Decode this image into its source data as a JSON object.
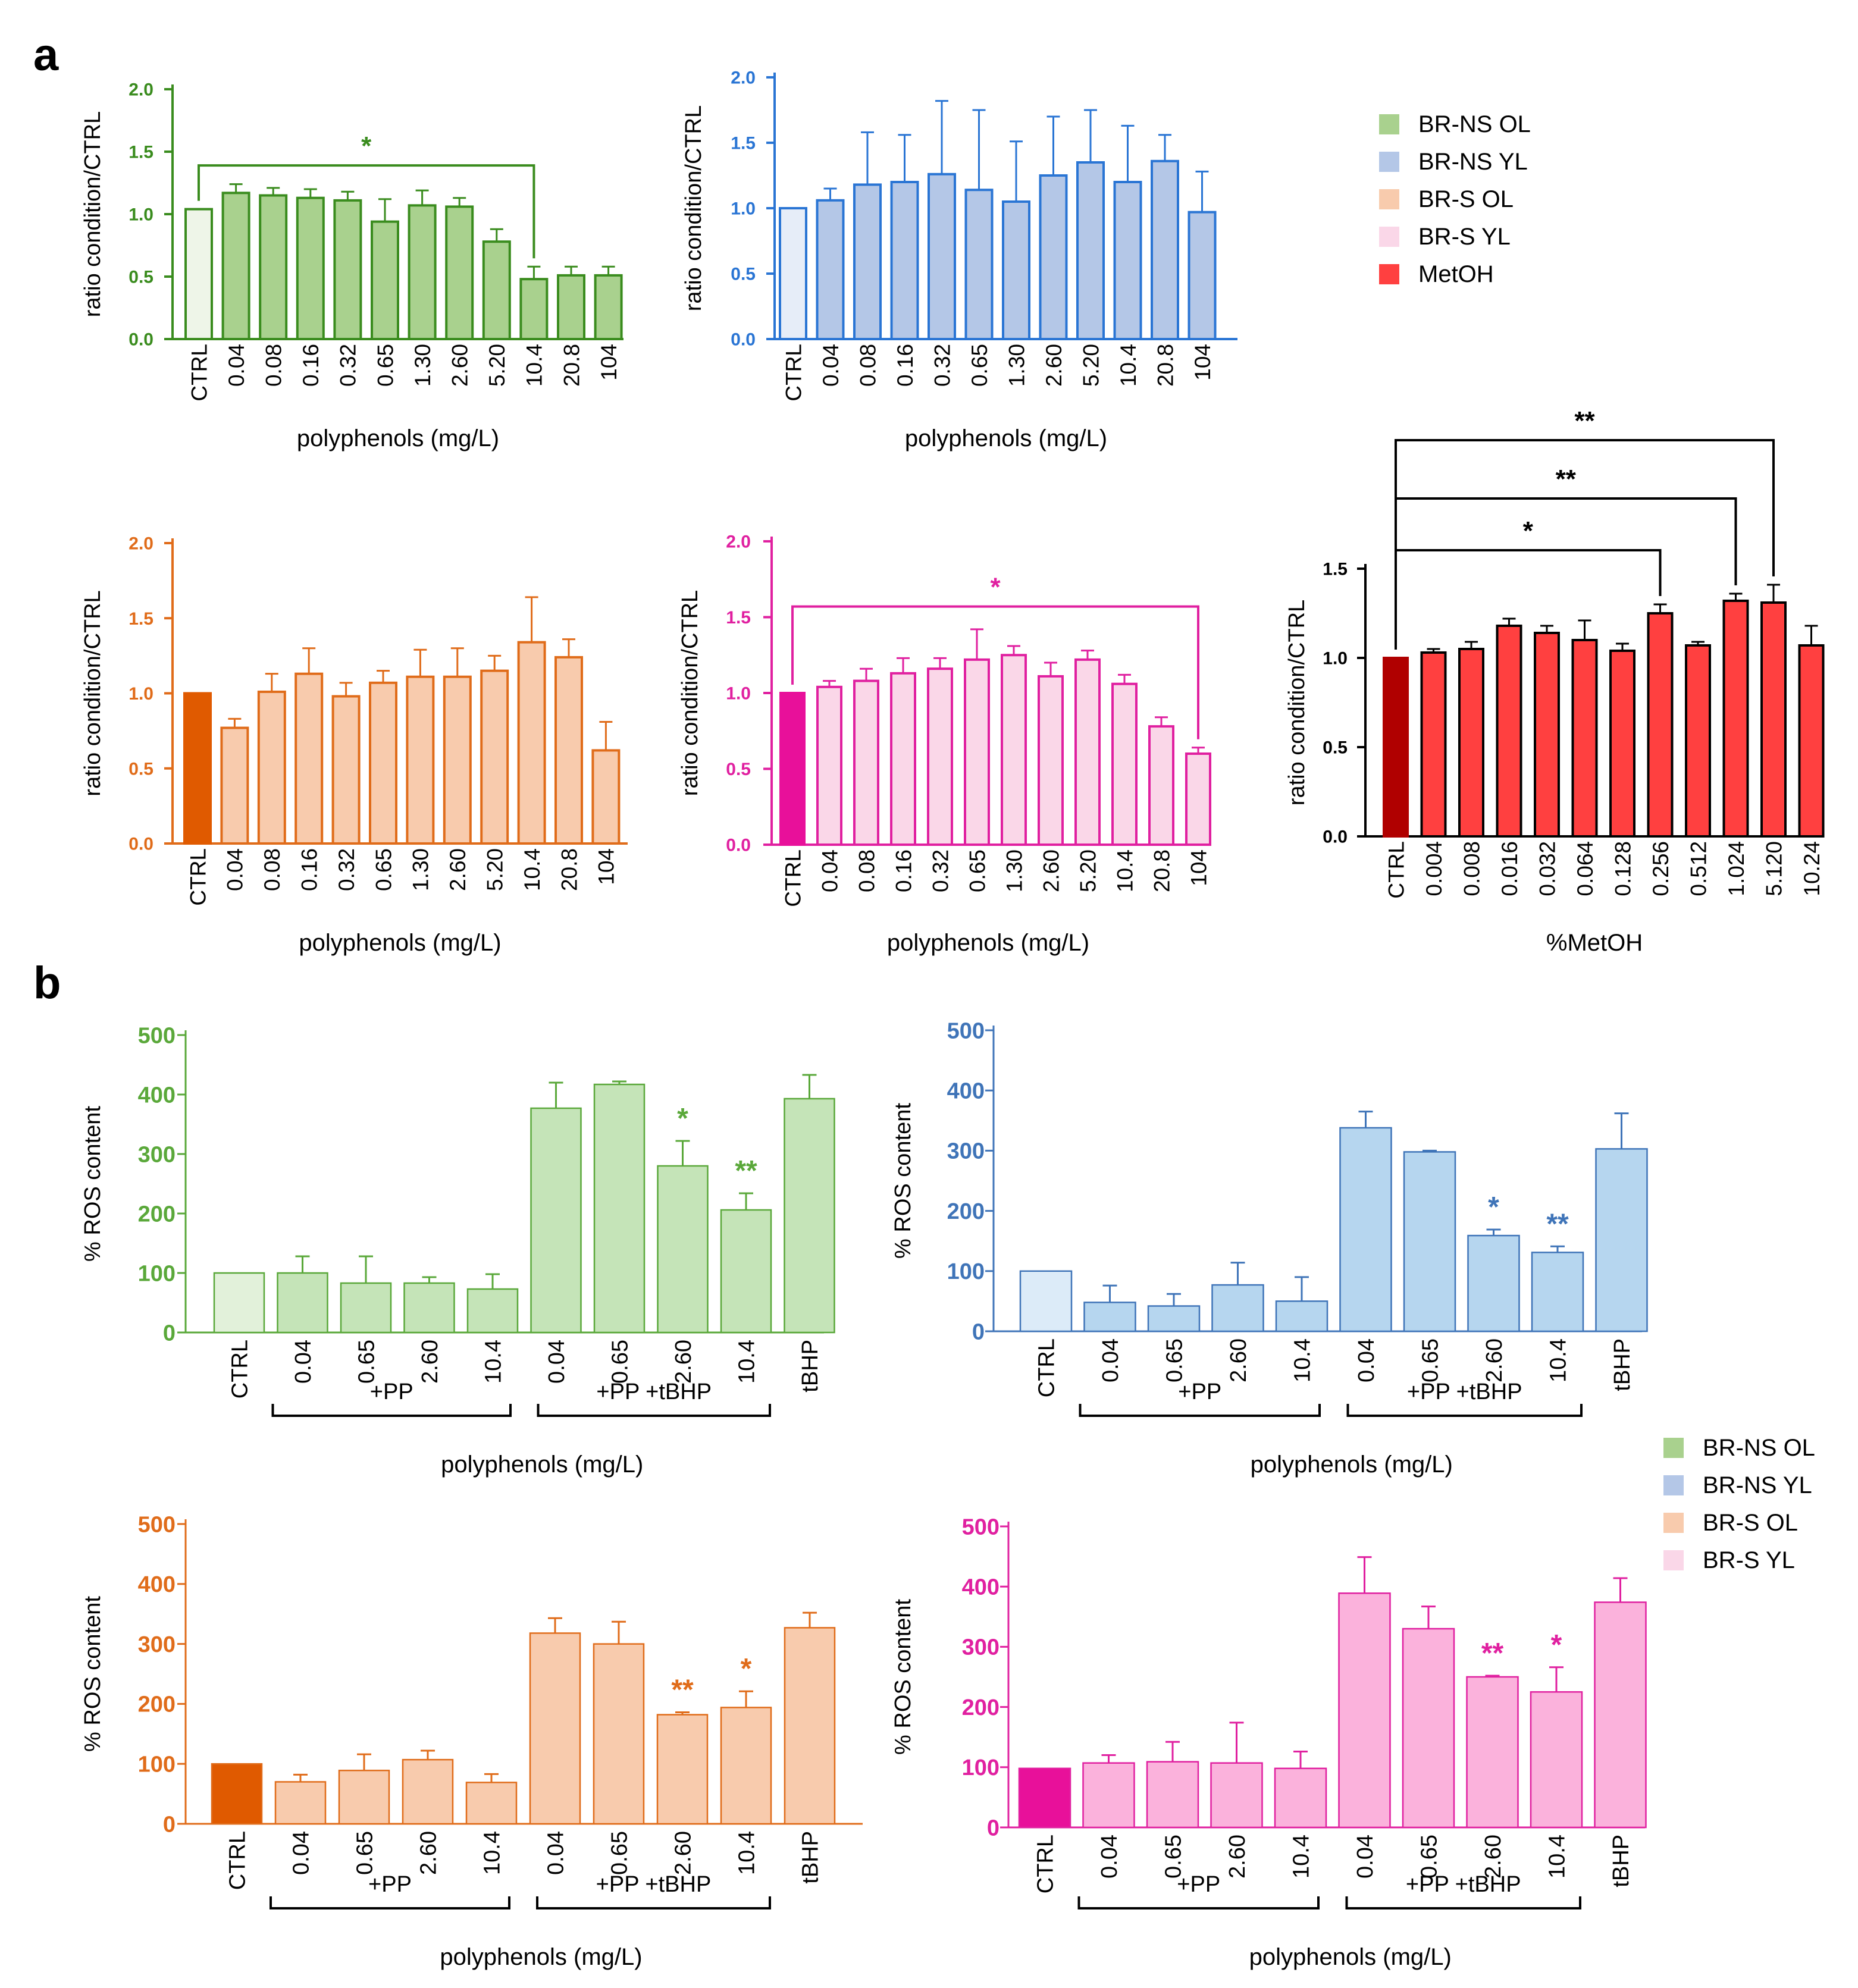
{
  "panel_labels": {
    "a": "a",
    "b": "b"
  },
  "legend_a": {
    "entries": [
      {
        "label": "BR-NS OL",
        "color": "#a9d18e"
      },
      {
        "label": "BR-NS YL",
        "color": "#b4c7e7"
      },
      {
        "label": "BR-S OL",
        "color": "#f8cbad"
      },
      {
        "label": "BR-S YL",
        "color": "#fad7e8"
      },
      {
        "label": "MetOH",
        "color": "#ff4040"
      }
    ]
  },
  "legend_b": {
    "entries": [
      {
        "label": "BR-NS OL",
        "color": "#a9d18e"
      },
      {
        "label": "BR-NS YL",
        "color": "#b4c7e7"
      },
      {
        "label": "BR-S OL",
        "color": "#f8cbad"
      },
      {
        "label": "BR-S YL",
        "color": "#fad7e8"
      }
    ]
  },
  "groups_b": {
    "pp": "+PP",
    "pp_tbhp": "+PP +tBHP"
  },
  "chart_data": [
    {
      "id": "a1",
      "type": "bar",
      "panel": "a",
      "series": "BR-NS OL",
      "xlabel": "polyphenols (mg/L)",
      "ylabel": "ratio condition/CTRL",
      "ylim": [
        0,
        2.0
      ],
      "yticks": [
        "0.0",
        "0.5",
        "1.0",
        "1.5",
        "2.0"
      ],
      "categories": [
        "CTRL",
        "0.04",
        "0.08",
        "0.16",
        "0.32",
        "0.65",
        "1.30",
        "2.60",
        "5.20",
        "10.4",
        "20.8",
        "104"
      ],
      "values": [
        1.04,
        1.17,
        1.15,
        1.13,
        1.11,
        0.94,
        1.07,
        1.06,
        0.78,
        0.48,
        0.51,
        0.51
      ],
      "errors": [
        0,
        0.07,
        0.06,
        0.07,
        0.07,
        0.18,
        0.12,
        0.07,
        0.1,
        0.1,
        0.07,
        0.07
      ],
      "colors": {
        "axis": "#3a8c1e",
        "fill": "#a9d18e",
        "ctrl_fill": "#eef5e8",
        "edge": "#3a8c1e"
      },
      "brackets": [
        {
          "from": 0,
          "to": 9,
          "label": "*"
        }
      ]
    },
    {
      "id": "a2",
      "type": "bar",
      "panel": "a",
      "series": "BR-NS YL",
      "xlabel": "polyphenols (mg/L)",
      "ylabel": "ratio condition/CTRL",
      "ylim": [
        0,
        2.0
      ],
      "yticks": [
        "0.0",
        "0.5",
        "1.0",
        "1.5",
        "2.0"
      ],
      "categories": [
        "CTRL",
        "0.04",
        "0.08",
        "0.16",
        "0.32",
        "0.65",
        "1.30",
        "2.60",
        "5.20",
        "10.4",
        "20.8",
        "104"
      ],
      "values": [
        1.0,
        1.06,
        1.18,
        1.2,
        1.26,
        1.14,
        1.05,
        1.25,
        1.35,
        1.2,
        1.36,
        0.97
      ],
      "errors": [
        0,
        0.09,
        0.4,
        0.36,
        0.56,
        0.61,
        0.46,
        0.45,
        0.4,
        0.43,
        0.2,
        0.31
      ],
      "colors": {
        "axis": "#2a75d4",
        "fill": "#b4c7e7",
        "ctrl_fill": "#e6edf8",
        "edge": "#2a75d4"
      },
      "brackets": []
    },
    {
      "id": "a3",
      "type": "bar",
      "panel": "a",
      "series": "BR-S OL",
      "xlabel": "polyphenols (mg/L)",
      "ylabel": "ratio condition/CTRL",
      "ylim": [
        0,
        2.0
      ],
      "yticks": [
        "0.0",
        "0.5",
        "1.0",
        "1.5",
        "2.0"
      ],
      "categories": [
        "CTRL",
        "0.04",
        "0.08",
        "0.16",
        "0.32",
        "0.65",
        "1.30",
        "2.60",
        "5.20",
        "10.4",
        "20.8",
        "104"
      ],
      "values": [
        1.0,
        0.77,
        1.01,
        1.13,
        0.98,
        1.07,
        1.11,
        1.11,
        1.15,
        1.34,
        1.24,
        0.62
      ],
      "errors": [
        0,
        0.06,
        0.12,
        0.17,
        0.09,
        0.08,
        0.18,
        0.19,
        0.1,
        0.3,
        0.12,
        0.19
      ],
      "colors": {
        "axis": "#e06c1a",
        "fill": "#f8cbad",
        "ctrl_fill": "#e05a00",
        "edge": "#e06c1a"
      },
      "brackets": []
    },
    {
      "id": "a4",
      "type": "bar",
      "panel": "a",
      "series": "BR-S YL",
      "xlabel": "polyphenols (mg/L)",
      "ylabel": "ratio condition/CTRL",
      "ylim": [
        0,
        2.0
      ],
      "yticks": [
        "0.0",
        "0.5",
        "1.0",
        "1.5",
        "2.0"
      ],
      "categories": [
        "CTRL",
        "0.04",
        "0.08",
        "0.16",
        "0.32",
        "0.65",
        "1.30",
        "2.60",
        "5.20",
        "10.4",
        "20.8",
        "104"
      ],
      "values": [
        1.0,
        1.04,
        1.08,
        1.13,
        1.16,
        1.22,
        1.25,
        1.11,
        1.22,
        1.06,
        0.78,
        0.6
      ],
      "errors": [
        0,
        0.04,
        0.08,
        0.1,
        0.07,
        0.2,
        0.06,
        0.09,
        0.06,
        0.06,
        0.06,
        0.04
      ],
      "colors": {
        "axis": "#e020a0",
        "fill": "#fad7e8",
        "ctrl_fill": "#e8109a",
        "edge": "#e020a0"
      },
      "brackets": [
        {
          "from": 0,
          "to": 11,
          "label": "*"
        }
      ]
    },
    {
      "id": "a5",
      "type": "bar",
      "panel": "a",
      "series": "MetOH",
      "xlabel": "%MetOH",
      "ylabel": "ratio condition/CTRL",
      "ylim": [
        0,
        1.5
      ],
      "yticks": [
        "0.0",
        "0.5",
        "1.0",
        "1.5"
      ],
      "categories": [
        "CTRL",
        "0.004",
        "0.008",
        "0.016",
        "0.032",
        "0.064",
        "0.128",
        "0.256",
        "0.512",
        "1.024",
        "5.120",
        "10.24"
      ],
      "values": [
        1.0,
        1.03,
        1.05,
        1.18,
        1.14,
        1.1,
        1.04,
        1.25,
        1.07,
        1.32,
        1.31,
        1.07
      ],
      "errors": [
        0,
        0.02,
        0.04,
        0.04,
        0.04,
        0.11,
        0.04,
        0.05,
        0.02,
        0.04,
        0.1,
        0.11
      ],
      "colors": {
        "axis": "#000000",
        "fill": "#ff4040",
        "ctrl_fill": "#b00000",
        "edge": "#000000"
      },
      "brackets": [
        {
          "from": 0,
          "to": 7,
          "label": "*"
        },
        {
          "from": 0,
          "to": 9,
          "label": "**"
        },
        {
          "from": 0,
          "to": 10,
          "label": "**"
        }
      ]
    },
    {
      "id": "b1",
      "type": "bar",
      "panel": "b",
      "series": "BR-NS OL",
      "xlabel": "polyphenols (mg/L)",
      "ylabel": "% ROS content",
      "ylim": [
        0,
        500
      ],
      "yticks": [
        "0",
        "100",
        "200",
        "300",
        "400",
        "500"
      ],
      "categories": [
        "CTRL",
        "0.04",
        "0.65",
        "2.60",
        "10.4",
        "0.04",
        "0.65",
        "2.60",
        "10.4",
        "tBHP"
      ],
      "values": [
        100,
        100,
        83,
        83,
        73,
        377,
        417,
        280,
        206,
        393
      ],
      "errors": [
        0,
        28,
        45,
        10,
        25,
        43,
        5,
        42,
        28,
        40
      ],
      "sig": [
        null,
        null,
        null,
        null,
        null,
        null,
        null,
        "*",
        "**",
        null
      ],
      "colors": {
        "axis": "#5aa83a",
        "fill": "#c5e4b8",
        "ctrl_fill": "#e2f1da",
        "edge": "#5aa83a"
      }
    },
    {
      "id": "b2",
      "type": "bar",
      "panel": "b",
      "series": "BR-NS YL",
      "xlabel": "polyphenols (mg/L)",
      "ylabel": "% ROS content",
      "ylim": [
        0,
        500
      ],
      "yticks": [
        "0",
        "100",
        "200",
        "300",
        "400",
        "500"
      ],
      "categories": [
        "CTRL",
        "0.04",
        "0.65",
        "2.60",
        "10.4",
        "0.04",
        "0.65",
        "2.60",
        "10.4",
        "tBHP"
      ],
      "values": [
        100,
        48,
        42,
        77,
        50,
        338,
        298,
        159,
        131,
        303
      ],
      "errors": [
        0,
        28,
        20,
        37,
        40,
        27,
        2,
        10,
        10,
        59
      ],
      "sig": [
        null,
        null,
        null,
        null,
        null,
        null,
        null,
        "*",
        "**",
        null
      ],
      "colors": {
        "axis": "#3f74b8",
        "fill": "#b6d6ef",
        "ctrl_fill": "#dcebf8",
        "edge": "#3f74b8"
      }
    },
    {
      "id": "b3",
      "type": "bar",
      "panel": "b",
      "series": "BR-S OL",
      "xlabel": "polyphenols (mg/L)",
      "ylabel": "% ROS content",
      "ylim": [
        0,
        500
      ],
      "yticks": [
        "0",
        "100",
        "200",
        "300",
        "400",
        "500"
      ],
      "categories": [
        "CTRL",
        "0.04",
        "0.65",
        "2.60",
        "10.4",
        "0.04",
        "0.65",
        "2.60",
        "10.4",
        "tBHP"
      ],
      "values": [
        100,
        70,
        89,
        107,
        69,
        318,
        300,
        182,
        194,
        327
      ],
      "errors": [
        0,
        12,
        27,
        15,
        14,
        25,
        37,
        4,
        27,
        25
      ],
      "sig": [
        null,
        null,
        null,
        null,
        null,
        null,
        null,
        "**",
        "*",
        null
      ],
      "colors": {
        "axis": "#e06c1a",
        "fill": "#f8cbad",
        "ctrl_fill": "#e05a00",
        "edge": "#e06c1a"
      }
    },
    {
      "id": "b4",
      "type": "bar",
      "panel": "b",
      "series": "BR-S YL",
      "xlabel": "polyphenols (mg/L)",
      "ylabel": "% ROS content",
      "ylim": [
        0,
        500
      ],
      "yticks": [
        "0",
        "100",
        "200",
        "300",
        "400",
        "500"
      ],
      "categories": [
        "CTRL",
        "0.04",
        "0.65",
        "2.60",
        "10.4",
        "0.04",
        "0.65",
        "2.60",
        "10.4",
        "tBHP"
      ],
      "values": [
        98,
        107,
        109,
        107,
        98,
        389,
        330,
        250,
        225,
        374
      ],
      "errors": [
        0,
        13,
        33,
        67,
        28,
        60,
        37,
        2,
        41,
        40
      ],
      "sig": [
        null,
        null,
        null,
        null,
        null,
        null,
        null,
        "**",
        "*",
        null
      ],
      "colors": {
        "axis": "#e020a0",
        "fill": "#fbb2dc",
        "ctrl_fill": "#e8109a",
        "edge": "#e020a0"
      }
    }
  ]
}
